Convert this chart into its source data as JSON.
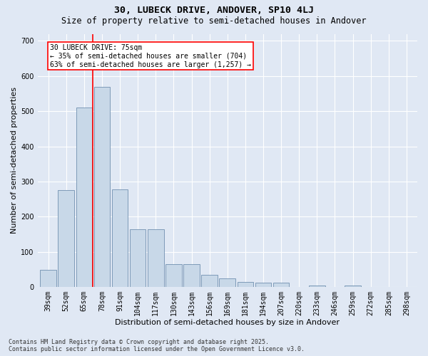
{
  "title1": "30, LUBECK DRIVE, ANDOVER, SP10 4LJ",
  "title2": "Size of property relative to semi-detached houses in Andover",
  "xlabel": "Distribution of semi-detached houses by size in Andover",
  "ylabel": "Number of semi-detached properties",
  "categories": [
    "39sqm",
    "52sqm",
    "65sqm",
    "78sqm",
    "91sqm",
    "104sqm",
    "117sqm",
    "130sqm",
    "143sqm",
    "156sqm",
    "169sqm",
    "181sqm",
    "194sqm",
    "207sqm",
    "220sqm",
    "233sqm",
    "246sqm",
    "259sqm",
    "272sqm",
    "285sqm",
    "298sqm"
  ],
  "values": [
    50,
    275,
    510,
    570,
    278,
    165,
    165,
    65,
    65,
    35,
    25,
    15,
    12,
    12,
    0,
    5,
    0,
    5,
    0,
    0,
    0
  ],
  "bar_color": "#c8d8e8",
  "bar_edge_color": "#7090b0",
  "vline_x": 2.5,
  "vline_color": "red",
  "annotation_text": "30 LUBECK DRIVE: 75sqm\n← 35% of semi-detached houses are smaller (704)\n63% of semi-detached houses are larger (1,257) →",
  "annotation_box_color": "white",
  "annotation_box_edge": "red",
  "ylim": [
    0,
    720
  ],
  "yticks": [
    0,
    100,
    200,
    300,
    400,
    500,
    600,
    700
  ],
  "background_color": "#e0e8f4",
  "grid_color": "white",
  "footer": "Contains HM Land Registry data © Crown copyright and database right 2025.\nContains public sector information licensed under the Open Government Licence v3.0.",
  "title1_fontsize": 9.5,
  "title2_fontsize": 8.5,
  "xlabel_fontsize": 8,
  "ylabel_fontsize": 8,
  "tick_fontsize": 7,
  "footer_fontsize": 6,
  "annotation_fontsize": 7
}
